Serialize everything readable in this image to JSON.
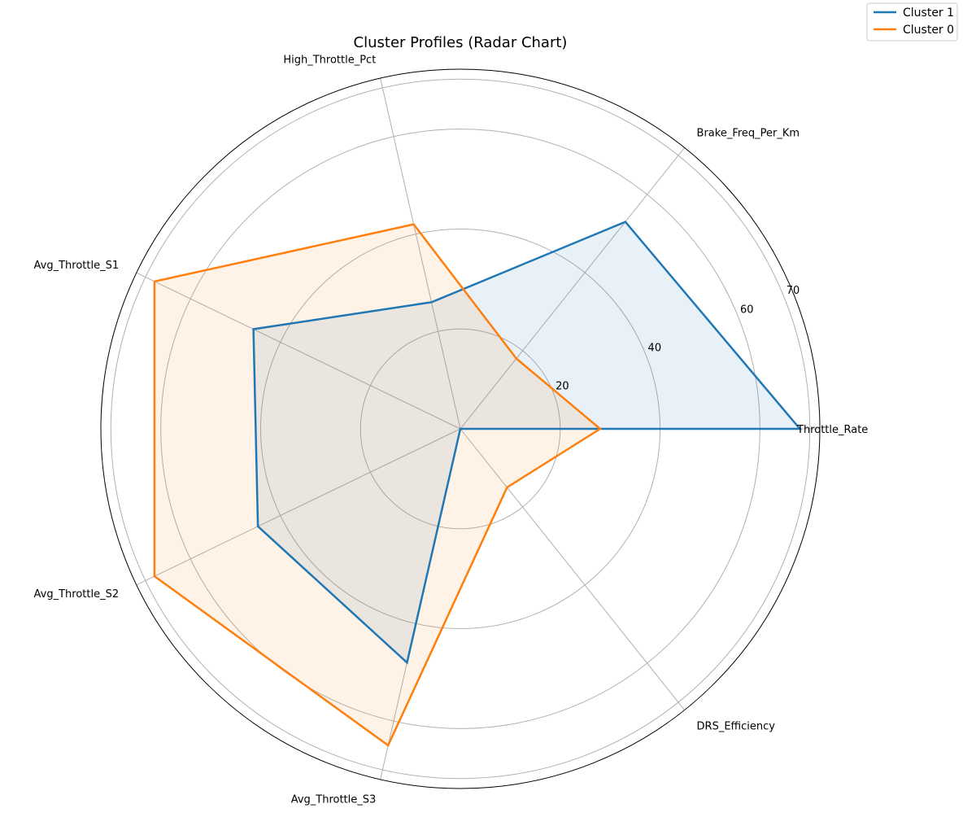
{
  "chart_data": {
    "type": "radar",
    "title": "Cluster Profiles (Radar Chart)",
    "axes": [
      "Throttle_Rate",
      "Brake_Freq_Per_Km",
      "High_Throttle_Pct",
      "Avg_Throttle_S1",
      "Avg_Throttle_S2",
      "Avg_Throttle_S3",
      "DRS_Efficiency"
    ],
    "rticks": [
      20,
      40,
      60,
      70
    ],
    "rlim": [
      0,
      72
    ],
    "grid": true,
    "legend_position": "top-right",
    "series": [
      {
        "name": "Cluster 1",
        "color": "#1f77b4",
        "values": [
          68,
          53,
          26,
          46,
          45,
          48,
          0
        ]
      },
      {
        "name": "Cluster 0",
        "color": "#ff7f0e",
        "values": [
          28,
          18,
          42,
          68,
          68,
          65,
          15
        ]
      }
    ]
  }
}
